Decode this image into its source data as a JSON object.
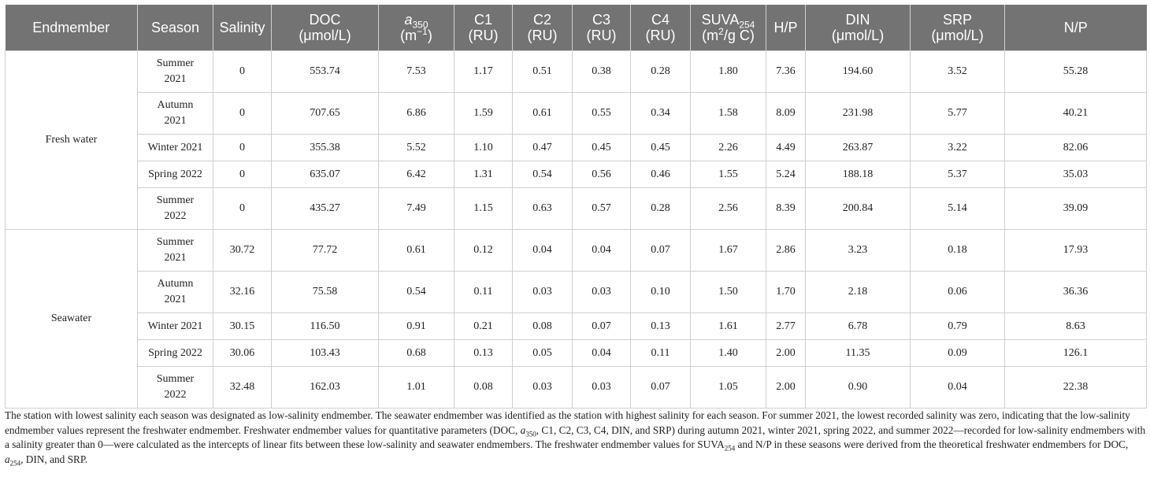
{
  "headers": {
    "endmember": "Endmember",
    "season": "Season",
    "salinity": "Salinity",
    "doc": "DOC",
    "doc_unit": "(μmol/L)",
    "a350_base": "a",
    "a350_sub": "350",
    "a350_unit_base": "(m",
    "a350_unit_sup": "−1",
    "a350_unit_end": ")",
    "c1": "C1",
    "c2": "C2",
    "c3": "C3",
    "c4": "C4",
    "ru": "(RU)",
    "suva_base": "SUVA",
    "suva_sub": "254",
    "suva_unit_base": "(m",
    "suva_unit_sup": "2",
    "suva_unit_end": "/g C)",
    "hp": "H/P",
    "din": "DIN",
    "din_unit": "(μmol/L)",
    "srp": "SRP",
    "srp_unit": "(μmol/L)",
    "np": "N/P"
  },
  "groups": {
    "fresh": "Fresh water",
    "sea": "Seawater"
  },
  "rows": [
    {
      "season_a": "Summer",
      "season_b": "2021",
      "salinity": "0",
      "doc": "553.74",
      "a350": "7.53",
      "c1": "1.17",
      "c2": "0.51",
      "c3": "0.38",
      "c4": "0.28",
      "suva": "1.80",
      "hp": "7.36",
      "din": "194.60",
      "srp": "3.52",
      "np": "55.28"
    },
    {
      "season_a": "Autumn",
      "season_b": "2021",
      "salinity": "0",
      "doc": "707.65",
      "a350": "6.86",
      "c1": "1.59",
      "c2": "0.61",
      "c3": "0.55",
      "c4": "0.34",
      "suva": "1.58",
      "hp": "8.09",
      "din": "231.98",
      "srp": "5.77",
      "np": "40.21"
    },
    {
      "season_a": "Winter 2021",
      "season_b": "",
      "salinity": "0",
      "doc": "355.38",
      "a350": "5.52",
      "c1": "1.10",
      "c2": "0.47",
      "c3": "0.45",
      "c4": "0.45",
      "suva": "2.26",
      "hp": "4.49",
      "din": "263.87",
      "srp": "3.22",
      "np": "82.06"
    },
    {
      "season_a": "Spring 2022",
      "season_b": "",
      "salinity": "0",
      "doc": "635.07",
      "a350": "6.42",
      "c1": "1.31",
      "c2": "0.54",
      "c3": "0.56",
      "c4": "0.46",
      "suva": "1.55",
      "hp": "5.24",
      "din": "188.18",
      "srp": "5.37",
      "np": "35.03"
    },
    {
      "season_a": "Summer",
      "season_b": "2022",
      "salinity": "0",
      "doc": "435.27",
      "a350": "7.49",
      "c1": "1.15",
      "c2": "0.63",
      "c3": "0.57",
      "c4": "0.28",
      "suva": "2.56",
      "hp": "8.39",
      "din": "200.84",
      "srp": "5.14",
      "np": "39.09"
    },
    {
      "season_a": "Summer",
      "season_b": "2021",
      "salinity": "30.72",
      "doc": "77.72",
      "a350": "0.61",
      "c1": "0.12",
      "c2": "0.04",
      "c3": "0.04",
      "c4": "0.07",
      "suva": "1.67",
      "hp": "2.86",
      "din": "3.23",
      "srp": "0.18",
      "np": "17.93"
    },
    {
      "season_a": "Autumn",
      "season_b": "2021",
      "salinity": "32.16",
      "doc": "75.58",
      "a350": "0.54",
      "c1": "0.11",
      "c2": "0.03",
      "c3": "0.03",
      "c4": "0.10",
      "suva": "1.50",
      "hp": "1.70",
      "din": "2.18",
      "srp": "0.06",
      "np": "36.36"
    },
    {
      "season_a": "Winter 2021",
      "season_b": "",
      "salinity": "30.15",
      "doc": "116.50",
      "a350": "0.91",
      "c1": "0.21",
      "c2": "0.08",
      "c3": "0.07",
      "c4": "0.13",
      "suva": "1.61",
      "hp": "2.77",
      "din": "6.78",
      "srp": "0.79",
      "np": "8.63"
    },
    {
      "season_a": "Spring 2022",
      "season_b": "",
      "salinity": "30.06",
      "doc": "103.43",
      "a350": "0.68",
      "c1": "0.13",
      "c2": "0.05",
      "c3": "0.04",
      "c4": "0.11",
      "suva": "1.40",
      "hp": "2.00",
      "din": "11.35",
      "srp": "0.09",
      "np": "126.1"
    },
    {
      "season_a": "Summer",
      "season_b": "2022",
      "salinity": "32.48",
      "doc": "162.03",
      "a350": "1.01",
      "c1": "0.08",
      "c2": "0.03",
      "c3": "0.03",
      "c4": "0.07",
      "suva": "1.05",
      "hp": "2.00",
      "din": "0.90",
      "srp": "0.04",
      "np": "22.38"
    }
  ],
  "note": {
    "p1": "The station with lowest salinity each season was designated as low-salinity endmember. The seawater endmember was identified as the station with highest salinity for each season. For summer 2021, the lowest recorded salinity was zero, indicating that the low-salinity endmember values represent the freshwater endmember. Freshwater endmember values for quantitative parameters (DOC, ",
    "a350": "a",
    "a350_sub": "350",
    "p2": ", C1, C2, C3, C4, DIN, and SRP) during autumn 2021, winter 2021, spring 2022, and summer 2022—recorded for low-salinity endmembers with a salinity greater than 0—were calculated as the intercepts of linear fits between these low-salinity and seawater endmembers. The freshwater endmember values for SUVA",
    "suva_sub": "254",
    "p3": " and N/P in these seasons were derived from the theoretical freshwater endmembers for DOC, ",
    "a254": "a",
    "a254_sub": "254",
    "p4": ", DIN, and SRP."
  }
}
